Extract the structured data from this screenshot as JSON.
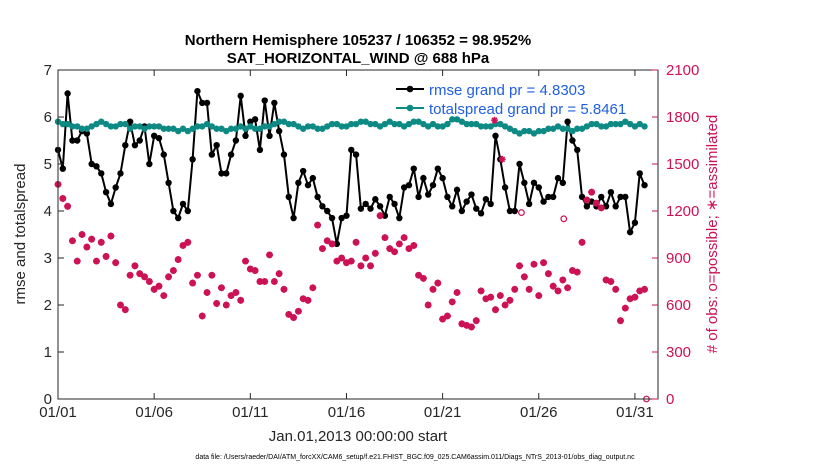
{
  "chart_data": {
    "type": "line",
    "title": "Northern Hemisphere 105237 / 106352 = 98.952%",
    "subtitle": "SAT_HORIZONTAL_WIND @ 688 hPa",
    "xlabel": "Jan.01,2013 00:00:00 start",
    "ylabel_left": "rmse and totalspread",
    "ylabel_right": "# of obs: o=possible; ∗=assimilated",
    "footnote": "data file: /Users/raeder/DAI/ATM_forcXX/CAM6_setup/f.e21.FHIST_BGC.f09_025.CAM6assim.011/Diags_NTrS_2013-01/obs_diag_output.nc",
    "x_range": [
      1,
      32.2
    ],
    "ylim_left": [
      0,
      7
    ],
    "ylim_right": [
      0,
      2100
    ],
    "x_tick_labels": [
      "01/01",
      "01/06",
      "01/11",
      "01/16",
      "01/21",
      "01/26",
      "01/31"
    ],
    "x_tick_days": [
      1,
      6,
      11,
      16,
      21,
      26,
      31
    ],
    "y_ticks_left": [
      "0",
      "1",
      "2",
      "3",
      "4",
      "5",
      "6",
      "7"
    ],
    "y_ticks_right": [
      "0",
      "300",
      "600",
      "900",
      "1200",
      "1500",
      "1800",
      "2100"
    ],
    "grid": false,
    "legend_position": "top-right",
    "series": [
      {
        "name": "rmse grand pr = 4.8303",
        "color": "#000000",
        "marker": "filled-circle",
        "axis": "left",
        "x_start_day": 1,
        "x_step_days": 0.25,
        "values": [
          5.3,
          4.9,
          6.5,
          5.5,
          5.5,
          5.7,
          5.65,
          5.0,
          4.95,
          4.8,
          4.4,
          4.15,
          4.5,
          4.8,
          5.4,
          5.9,
          5.4,
          5.5,
          5.8,
          5.0,
          5.6,
          5.55,
          5.2,
          4.6,
          4.0,
          3.85,
          4.15,
          4.0,
          5.1,
          6.55,
          6.3,
          6.3,
          5.2,
          5.4,
          4.8,
          4.8,
          5.2,
          5.5,
          6.45,
          5.6,
          5.9,
          5.95,
          5.3,
          6.35,
          5.6,
          6.3,
          5.7,
          5.2,
          4.3,
          3.85,
          4.6,
          4.85,
          4.55,
          4.7,
          4.3,
          4.1,
          4.0,
          3.85,
          3.3,
          3.85,
          3.9,
          5.3,
          5.2,
          4.05,
          4.15,
          4.05,
          4.25,
          4.1,
          3.9,
          4.3,
          4.15,
          3.85,
          4.5,
          4.55,
          4.9,
          4.3,
          4.7,
          4.35,
          4.55,
          4.9,
          4.7,
          4.3,
          4.1,
          4.45,
          4.0,
          4.2,
          4.35,
          4.05,
          3.95,
          4.25,
          4.15,
          5.6,
          5.1,
          4.5,
          4.0,
          4.0,
          5.0,
          4.6,
          4.15,
          4.6,
          4.5,
          4.2,
          4.3,
          4.3,
          4.7,
          4.6,
          5.9,
          5.5,
          5.3,
          4.3,
          4.1,
          4.2,
          4.1,
          4.3,
          4.1,
          4.4,
          4.1,
          4.3,
          4.3,
          3.55,
          3.75,
          4.8,
          4.55
        ]
      },
      {
        "name": "totalspread grand pr = 5.8461",
        "color": "#0e8a85",
        "marker": "filled-circle",
        "axis": "left",
        "x_start_day": 1,
        "x_step_days": 0.25,
        "values": [
          5.9,
          5.85,
          5.85,
          5.8,
          5.8,
          5.75,
          5.75,
          5.8,
          5.85,
          5.9,
          5.85,
          5.8,
          5.8,
          5.85,
          5.85,
          5.75,
          5.8,
          5.8,
          5.75,
          5.8,
          5.8,
          5.8,
          5.75,
          5.75,
          5.75,
          5.7,
          5.75,
          5.7,
          5.75,
          5.8,
          5.8,
          5.85,
          5.8,
          5.75,
          5.75,
          5.7,
          5.75,
          5.75,
          5.8,
          5.75,
          5.8,
          5.75,
          5.75,
          5.8,
          5.8,
          5.85,
          5.9,
          5.9,
          5.85,
          5.85,
          5.8,
          5.75,
          5.8,
          5.8,
          5.75,
          5.75,
          5.8,
          5.85,
          5.85,
          5.8,
          5.8,
          5.85,
          5.85,
          5.9,
          5.9,
          5.85,
          5.85,
          5.8,
          5.85,
          5.9,
          5.85,
          5.85,
          5.8,
          5.85,
          5.9,
          5.9,
          5.85,
          5.8,
          5.85,
          5.8,
          5.8,
          5.85,
          5.95,
          5.95,
          5.9,
          5.85,
          5.85,
          5.85,
          5.8,
          5.8,
          5.8,
          5.85,
          5.85,
          5.8,
          5.75,
          5.7,
          5.65,
          5.7,
          5.7,
          5.65,
          5.7,
          5.7,
          5.75,
          5.75,
          5.8,
          5.75,
          5.75,
          5.7,
          5.75,
          5.75,
          5.8,
          5.85,
          5.85,
          5.8,
          5.8,
          5.85,
          5.85,
          5.85,
          5.9,
          5.85,
          5.8,
          5.85,
          5.8
        ]
      },
      {
        "name": "possible",
        "color": "#cc1155",
        "marker": "open-circle",
        "axis": "right",
        "x_start_day": 1,
        "x_step_days": 0.25,
        "values": [
          1370,
          1280,
          1230,
          1010,
          880,
          1050,
          970,
          1020,
          880,
          1000,
          910,
          1040,
          870,
          600,
          570,
          790,
          850,
          800,
          780,
          750,
          700,
          720,
          660,
          780,
          820,
          890,
          980,
          1000,
          740,
          790,
          530,
          680,
          790,
          610,
          710,
          600,
          660,
          680,
          630,
          880,
          830,
          820,
          750,
          750,
          920,
          750,
          800,
          700,
          540,
          520,
          560,
          640,
          630,
          710,
          1110,
          960,
          1010,
          990,
          880,
          900,
          870,
          880,
          1000,
          850,
          900,
          850,
          930,
          1170,
          1030,
          960,
          940,
          990,
          1030,
          960,
          980,
          790,
          770,
          600,
          700,
          740,
          510,
          530,
          620,
          680,
          480,
          470,
          460,
          500,
          690,
          640,
          650,
          570,
          660,
          600,
          630,
          700,
          850,
          780,
          700,
          860,
          660,
          870,
          800,
          720,
          690,
          760,
          710,
          820,
          810,
          1000,
          1270,
          1320,
          1250,
          1220,
          760,
          750,
          700,
          500,
          580,
          640,
          650,
          690,
          700
        ]
      },
      {
        "name": "assimilated",
        "color": "#cc1155",
        "marker": "asterisk",
        "axis": "right",
        "x_start_day": 1,
        "x_step_days": 0.25,
        "values": [
          1370,
          1280,
          1230,
          1010,
          880,
          1050,
          970,
          1020,
          880,
          1000,
          910,
          1040,
          870,
          600,
          570,
          790,
          850,
          800,
          780,
          750,
          700,
          720,
          660,
          780,
          820,
          890,
          980,
          1000,
          740,
          790,
          530,
          680,
          790,
          610,
          710,
          600,
          660,
          680,
          630,
          880,
          830,
          820,
          750,
          750,
          920,
          750,
          800,
          700,
          540,
          520,
          560,
          640,
          630,
          710,
          1110,
          960,
          1010,
          990,
          880,
          900,
          870,
          880,
          1000,
          850,
          900,
          850,
          930,
          1170,
          1030,
          960,
          940,
          990,
          1030,
          960,
          980,
          790,
          770,
          600,
          700,
          740,
          510,
          530,
          620,
          680,
          480,
          470,
          460,
          500,
          690,
          640,
          650,
          570,
          660,
          600,
          630,
          700,
          850,
          780,
          700,
          860,
          660,
          870,
          800,
          720,
          690,
          760,
          710,
          820,
          810,
          1000,
          1270,
          1320,
          1250,
          1220,
          760,
          750,
          700,
          500,
          580,
          640,
          650,
          690,
          700
        ]
      }
    ],
    "extra_markers": [
      {
        "series": "assimilated",
        "x_day": 23.7,
        "value": 1780
      },
      {
        "series": "assimilated",
        "x_day": 24.1,
        "value": 1530
      },
      {
        "series": "possible",
        "x_day": 25.1,
        "value": 1190
      },
      {
        "series": "possible",
        "x_day": 27.3,
        "value": 1150
      },
      {
        "series": "possible",
        "x_day": 31.6,
        "value": 0
      }
    ]
  }
}
